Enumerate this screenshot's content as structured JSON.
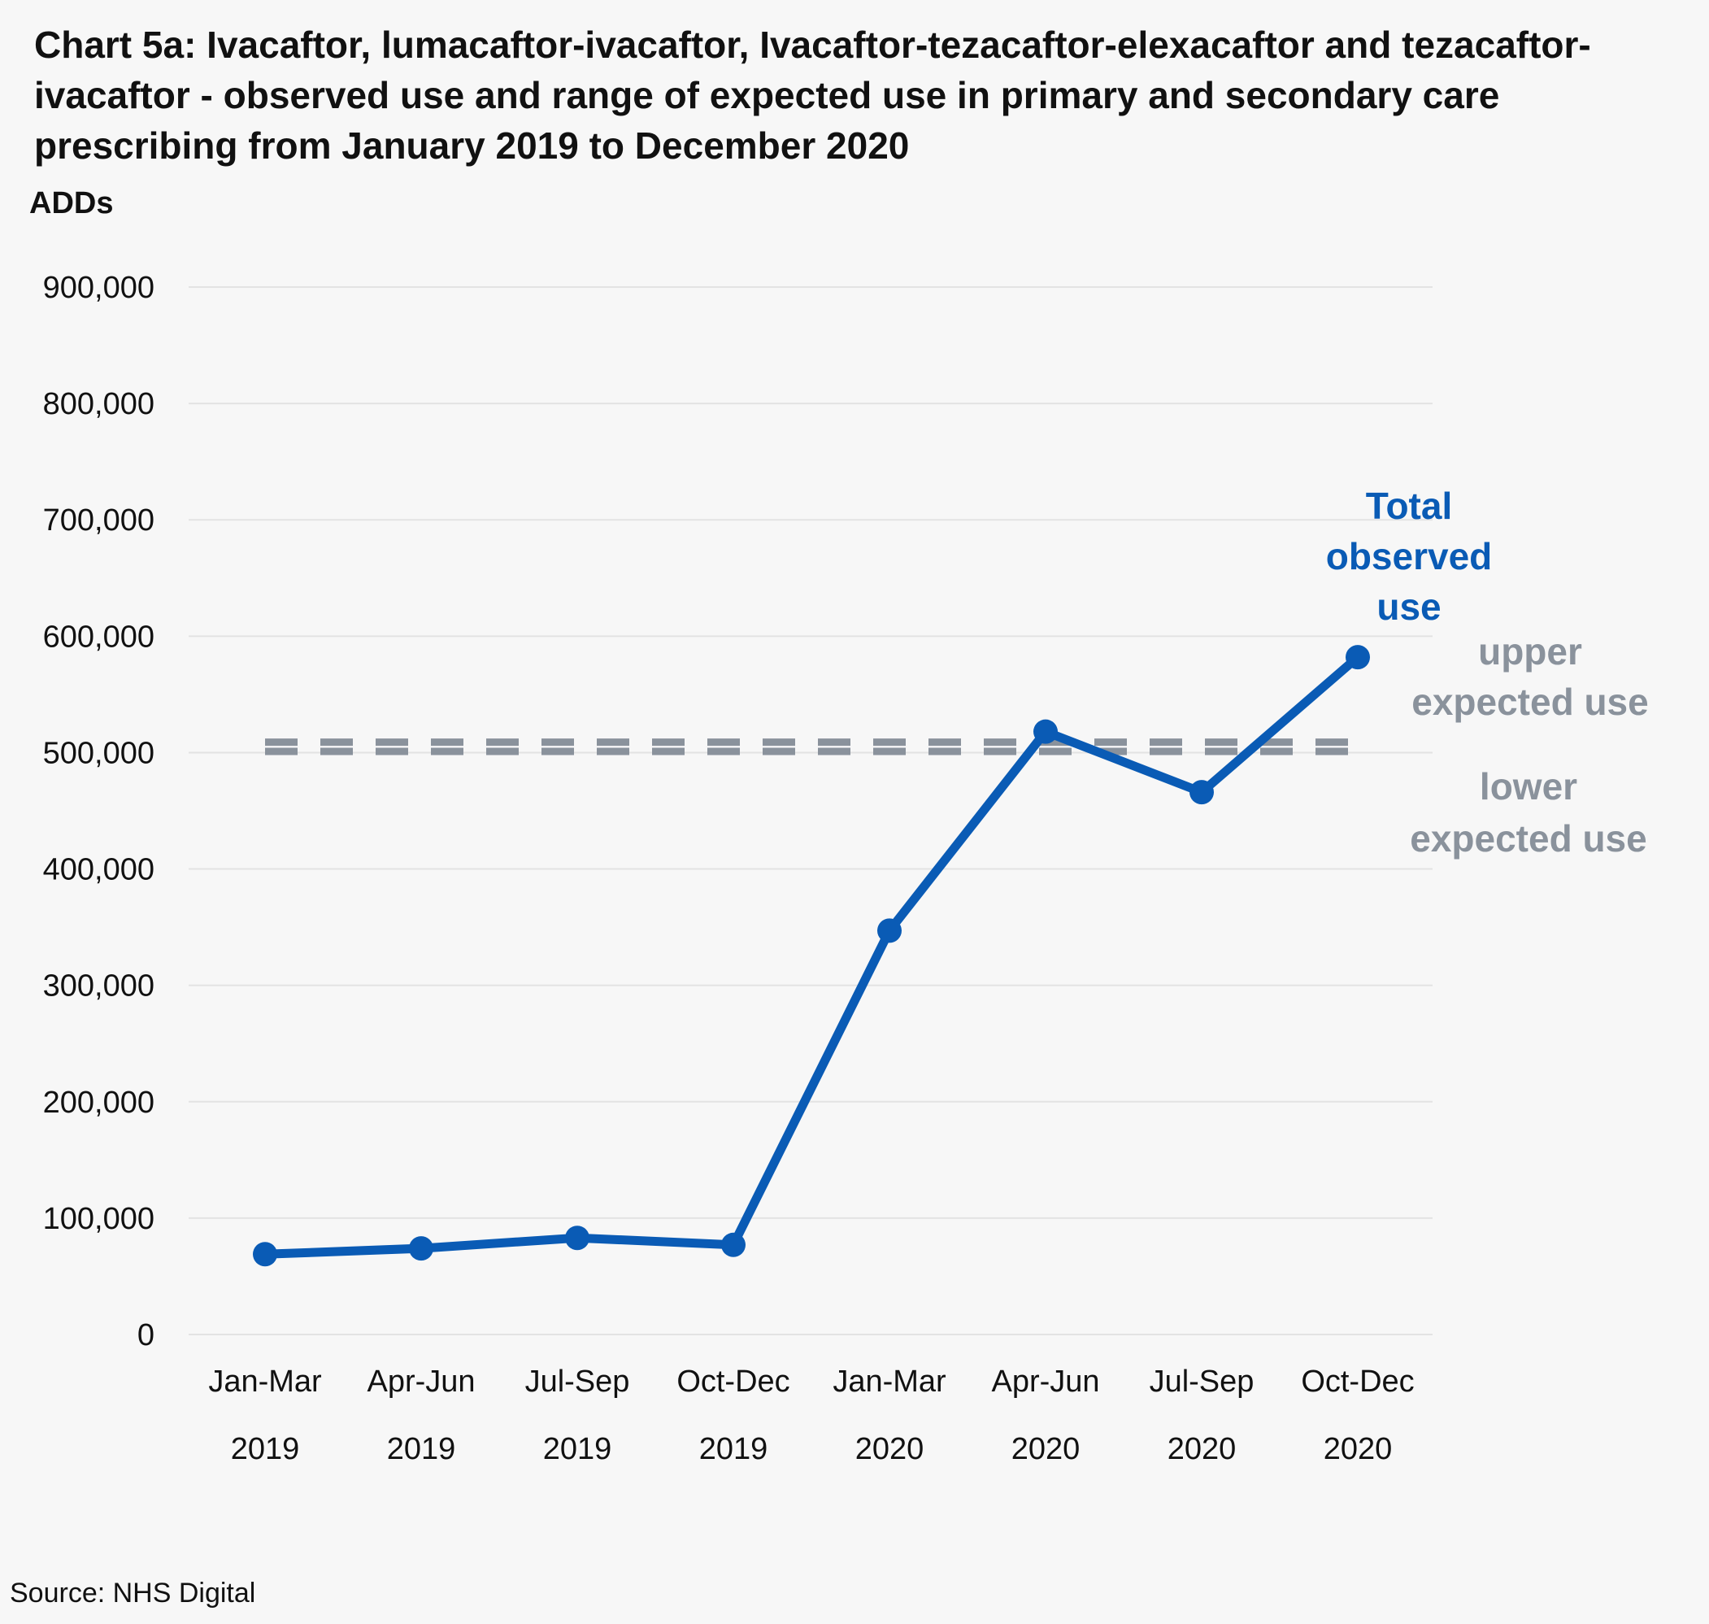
{
  "chart_data": {
    "type": "line",
    "title": "Chart 5a: Ivacaftor, lumacaftor-ivacaftor, Ivacaftor-tezacaftor-elexacaftor  and tezacaftor-ivacaftor - observed use and range of expected use in primary and secondary care prescribing from January 2019 to December 2020",
    "ylabel": "ADDs",
    "ylim": [
      0,
      900000
    ],
    "yticks": [
      "0",
      "100,000",
      "200,000",
      "300,000",
      "400,000",
      "500,000",
      "600,000",
      "700,000",
      "800,000",
      "900,000"
    ],
    "categories": [
      [
        "Jan-Mar",
        "2019"
      ],
      [
        "Apr-Jun",
        "2019"
      ],
      [
        "Jul-Sep",
        "2019"
      ],
      [
        "Oct-Dec",
        "2019"
      ],
      [
        "Jan-Mar",
        "2020"
      ],
      [
        "Apr-Jun",
        "2020"
      ],
      [
        "Jul-Sep",
        "2020"
      ],
      [
        "Oct-Dec",
        "2020"
      ]
    ],
    "series": [
      {
        "name": "Total observed use",
        "label_lines": [
          "Total",
          "observed",
          "use"
        ],
        "color": "#0a5bb5",
        "style": "solid-markers",
        "values": [
          69000,
          74000,
          83000,
          77000,
          347000,
          518000,
          466000,
          582000
        ]
      },
      {
        "name": "upper expected use",
        "label_lines": [
          "upper",
          "expected use"
        ],
        "color": "#8a929c",
        "style": "dashed",
        "values": [
          509000,
          509000,
          509000,
          509000,
          509000,
          509000,
          509000,
          509000
        ]
      },
      {
        "name": "lower expected use",
        "label_lines": [
          "lower",
          "expected use"
        ],
        "color": "#8a929c",
        "style": "dashed",
        "values": [
          501000,
          501000,
          501000,
          501000,
          501000,
          501000,
          501000,
          501000
        ]
      }
    ],
    "grid": true,
    "legend": "inline labels at right",
    "source": "Source: NHS Digital"
  }
}
